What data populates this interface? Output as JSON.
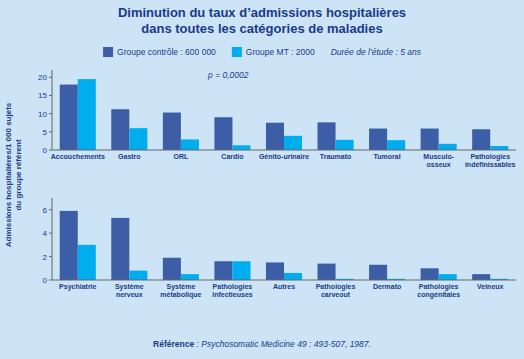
{
  "chart_data": [
    {
      "type": "bar",
      "title": "Diminution du taux d’admissions hospitalières\ndans toutes les catégories de maladies",
      "y_label": "Admissions hospitalières/1 000 sujets\ndu groupe référent",
      "annotations": [
        "p = 0,0002",
        "Durée de l’étude : 5 ans",
        "Référence",
        " : Psychosomatic Medicine 49 : 493-507, 1987."
      ],
      "legend": "top",
      "grid": false,
      "categories": [
        "Accouchements",
        "Gastro",
        "ORL",
        "Cardio",
        "Génito-urinaire",
        "Traumato",
        "Tumoral",
        "Musculo-\nosseux",
        "Pathologies\nindéfinissables"
      ],
      "series": [
        {
          "name": "Groupe contrôle : 600 000",
          "color": "#3b5ea6",
          "values": [
            18.0,
            11.2,
            10.3,
            9.0,
            7.5,
            7.6,
            5.9,
            5.9,
            5.7
          ]
        },
        {
          "name": "Groupe MT : 2000",
          "color": "#00aeef",
          "values": [
            19.5,
            6.0,
            2.9,
            1.3,
            3.9,
            2.8,
            2.7,
            1.7,
            1.1
          ]
        }
      ],
      "ylim": [
        0,
        22
      ],
      "yticks": [
        0,
        5,
        10,
        15,
        20
      ]
    },
    {
      "type": "bar",
      "grid": false,
      "categories": [
        "Psychiatrie",
        "Système\nnerveux",
        "Système\nmétabolique",
        "Pathologies\ninfectieuses",
        "Autres",
        "Pathologies\ncarveout",
        "Dermato",
        "Pathologies\ncongénitales",
        "Veineux"
      ],
      "series": [
        {
          "name": "Groupe contrôle : 600 000",
          "color": "#3b5ea6",
          "values": [
            5.9,
            5.3,
            1.9,
            1.6,
            1.5,
            1.4,
            1.3,
            1.0,
            0.5
          ]
        },
        {
          "name": "Groupe MT : 2000",
          "color": "#00aeef",
          "values": [
            3.0,
            0.8,
            0.5,
            1.6,
            0.6,
            0.1,
            0.1,
            0.5,
            0.1
          ]
        }
      ],
      "ylim": [
        0,
        7
      ],
      "yticks": [
        0,
        2,
        4,
        6
      ]
    }
  ]
}
